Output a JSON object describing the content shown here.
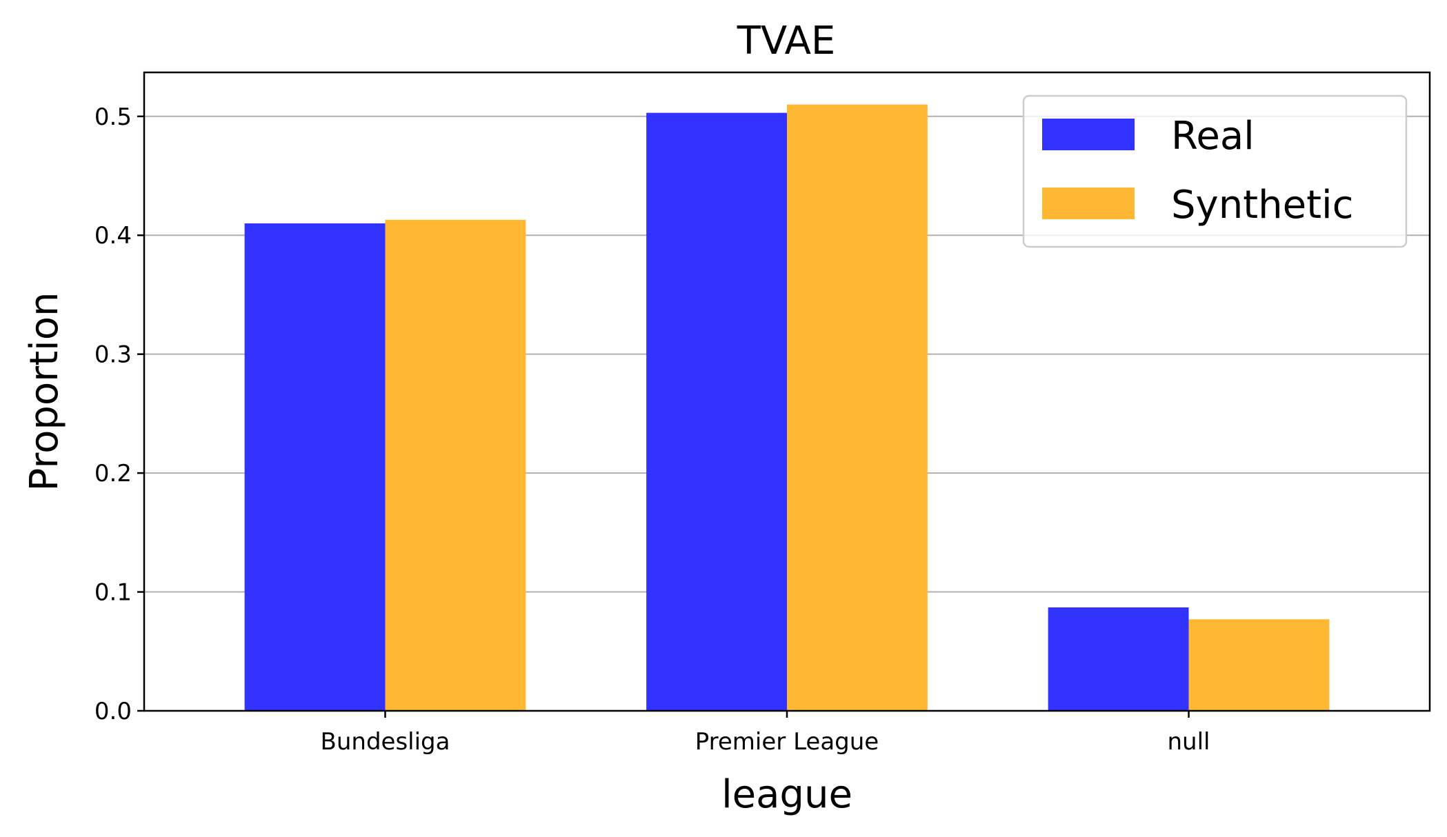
{
  "chart_data": {
    "type": "bar",
    "title": "TVAE",
    "xlabel": "league",
    "ylabel": "Proportion",
    "categories": [
      "Bundesliga",
      "Premier League",
      "null"
    ],
    "series": [
      {
        "name": "Real",
        "values": [
          0.41,
          0.503,
          0.087
        ],
        "color": "#3333ff"
      },
      {
        "name": "Synthetic",
        "values": [
          0.413,
          0.51,
          0.077
        ],
        "color": "#ffb833"
      }
    ],
    "ylim": [
      0,
      0.537
    ],
    "yticks": [
      0.0,
      0.1,
      0.2,
      0.3,
      0.4,
      0.5
    ],
    "ytick_labels": [
      "0.0",
      "0.1",
      "0.2",
      "0.3",
      "0.4",
      "0.5"
    ],
    "grid": "horizontal",
    "legend_position": "top-right"
  }
}
